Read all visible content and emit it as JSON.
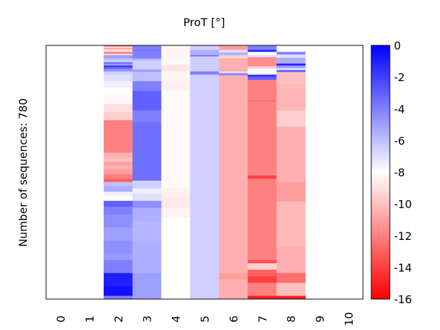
{
  "chart_data": {
    "type": "heatmap",
    "title": "ProT [°]",
    "ylabel": "Number of sequences: 780",
    "xlabel": "",
    "x_ticks": [
      "0",
      "1",
      "2",
      "3",
      "4",
      "5",
      "6",
      "7",
      "8",
      "9",
      "10"
    ],
    "n_rows": 780,
    "colorbar": {
      "min": -16,
      "max": 0,
      "ticks": [
        "0",
        "-2",
        "-4",
        "-6",
        "-8",
        "-10",
        "-12",
        "-14",
        "-16"
      ],
      "colormap": "bwr",
      "low_color": "#ff0000",
      "mid_color": "#ffffff",
      "high_color": "#0000ff"
    },
    "columns": [
      {
        "x": "0",
        "segments": []
      },
      {
        "x": "1",
        "segments": []
      },
      {
        "x": "2",
        "segments": [
          [
            0,
            4,
            -12
          ],
          [
            4,
            8,
            -9
          ],
          [
            8,
            12,
            -11
          ],
          [
            12,
            20,
            -9
          ],
          [
            20,
            26,
            -12
          ],
          [
            26,
            30,
            -9
          ],
          [
            30,
            40,
            -5
          ],
          [
            40,
            46,
            -6
          ],
          [
            46,
            52,
            -6.5
          ],
          [
            52,
            56,
            -3
          ],
          [
            56,
            62,
            -5
          ],
          [
            62,
            66,
            -1.5
          ],
          [
            66,
            72,
            -3
          ],
          [
            72,
            80,
            -4.5
          ],
          [
            80,
            90,
            -6.5
          ],
          [
            90,
            110,
            -7
          ],
          [
            110,
            130,
            -7.5
          ],
          [
            130,
            150,
            -8
          ],
          [
            150,
            180,
            -8.2
          ],
          [
            180,
            205,
            -9
          ],
          [
            205,
            230,
            -9.5
          ],
          [
            230,
            330,
            -12
          ],
          [
            330,
            345,
            -10.5
          ],
          [
            345,
            358,
            -10
          ],
          [
            358,
            370,
            -11
          ],
          [
            370,
            380,
            -10.5
          ],
          [
            380,
            396,
            -11
          ],
          [
            396,
            410,
            -12
          ],
          [
            410,
            420,
            -13
          ],
          [
            420,
            432,
            -6
          ],
          [
            432,
            450,
            -5.5
          ],
          [
            450,
            462,
            -7.5
          ],
          [
            462,
            478,
            -8
          ],
          [
            478,
            496,
            -3
          ],
          [
            496,
            520,
            -4
          ],
          [
            520,
            560,
            -4.5
          ],
          [
            560,
            600,
            -5
          ],
          [
            600,
            640,
            -4.5
          ],
          [
            640,
            660,
            -4.8
          ],
          [
            660,
            700,
            -4
          ],
          [
            700,
            740,
            -1
          ],
          [
            740,
            770,
            -0.5
          ],
          [
            770,
            780,
            -4
          ]
        ]
      },
      {
        "x": "3",
        "segments": [
          [
            0,
            14,
            -4
          ],
          [
            14,
            16,
            -3
          ],
          [
            16,
            40,
            -4
          ],
          [
            40,
            46,
            -5.5
          ],
          [
            46,
            74,
            -6.5
          ],
          [
            74,
            82,
            -5
          ],
          [
            82,
            110,
            -6
          ],
          [
            110,
            140,
            -4
          ],
          [
            140,
            200,
            -3
          ],
          [
            200,
            236,
            -4
          ],
          [
            236,
            320,
            -3.5
          ],
          [
            320,
            416,
            -3.5
          ],
          [
            416,
            440,
            -6.5
          ],
          [
            440,
            456,
            -7.5
          ],
          [
            456,
            478,
            -7
          ],
          [
            478,
            500,
            -4.5
          ],
          [
            500,
            540,
            -5.5
          ],
          [
            540,
            600,
            -5.7
          ],
          [
            600,
            650,
            -5.5
          ],
          [
            650,
            700,
            -5.5
          ],
          [
            700,
            770,
            -5
          ],
          [
            770,
            780,
            -5
          ]
        ]
      },
      {
        "x": "4",
        "segments": [
          [
            0,
            40,
            -8.3
          ],
          [
            40,
            60,
            -7.8
          ],
          [
            60,
            80,
            -8.8
          ],
          [
            80,
            110,
            -8.3
          ],
          [
            110,
            140,
            -8.5
          ],
          [
            140,
            440,
            -8.2
          ],
          [
            440,
            470,
            -8.5
          ],
          [
            470,
            500,
            -8.7
          ],
          [
            500,
            530,
            -8.4
          ],
          [
            530,
            780,
            -8
          ]
        ]
      },
      {
        "x": "5",
        "segments": [
          [
            0,
            14,
            -6.5
          ],
          [
            14,
            30,
            -5.5
          ],
          [
            30,
            34,
            -3.5
          ],
          [
            34,
            80,
            -6.5
          ],
          [
            80,
            90,
            -4
          ],
          [
            90,
            780,
            -6.5
          ]
        ]
      },
      {
        "x": "6",
        "segments": [
          [
            0,
            14,
            -11
          ],
          [
            14,
            22,
            -7
          ],
          [
            22,
            30,
            -5.5
          ],
          [
            30,
            40,
            -9.5
          ],
          [
            40,
            80,
            -10.5
          ],
          [
            80,
            86,
            -7
          ],
          [
            86,
            92,
            -4
          ],
          [
            92,
            440,
            -10.5
          ],
          [
            440,
            700,
            -10.5
          ],
          [
            700,
            720,
            -11
          ],
          [
            720,
            780,
            -10.5
          ]
        ]
      },
      {
        "x": "7",
        "segments": [
          [
            0,
            14,
            -4
          ],
          [
            14,
            20,
            -1
          ],
          [
            20,
            30,
            -8
          ],
          [
            30,
            36,
            -7
          ],
          [
            36,
            64,
            -11.5
          ],
          [
            64,
            72,
            -9.5
          ],
          [
            72,
            90,
            -8
          ],
          [
            90,
            96,
            -1.5
          ],
          [
            96,
            106,
            -3
          ],
          [
            106,
            170,
            -12
          ],
          [
            170,
            172,
            -13
          ],
          [
            172,
            400,
            -12
          ],
          [
            400,
            410,
            -14
          ],
          [
            410,
            660,
            -12
          ],
          [
            660,
            670,
            -13.5
          ],
          [
            670,
            690,
            -9.5
          ],
          [
            690,
            710,
            -13
          ],
          [
            710,
            730,
            -14
          ],
          [
            730,
            770,
            -12
          ],
          [
            770,
            780,
            -15
          ]
        ]
      },
      {
        "x": "8",
        "segments": [
          [
            0,
            20,
            -8
          ],
          [
            20,
            28,
            -4
          ],
          [
            28,
            38,
            -7
          ],
          [
            38,
            56,
            -5.5
          ],
          [
            56,
            62,
            -1
          ],
          [
            62,
            70,
            -5
          ],
          [
            70,
            76,
            -7
          ],
          [
            76,
            82,
            -3
          ],
          [
            82,
            120,
            -10
          ],
          [
            120,
            200,
            -10.3
          ],
          [
            200,
            250,
            -9.5
          ],
          [
            250,
            330,
            -10.5
          ],
          [
            330,
            420,
            -10.5
          ],
          [
            420,
            480,
            -11
          ],
          [
            480,
            620,
            -10.2
          ],
          [
            620,
            700,
            -10.5
          ],
          [
            700,
            730,
            -12.5
          ],
          [
            730,
            770,
            -10
          ],
          [
            770,
            780,
            -15
          ]
        ]
      },
      {
        "x": "9",
        "segments": []
      },
      {
        "x": "10",
        "segments": []
      }
    ]
  }
}
